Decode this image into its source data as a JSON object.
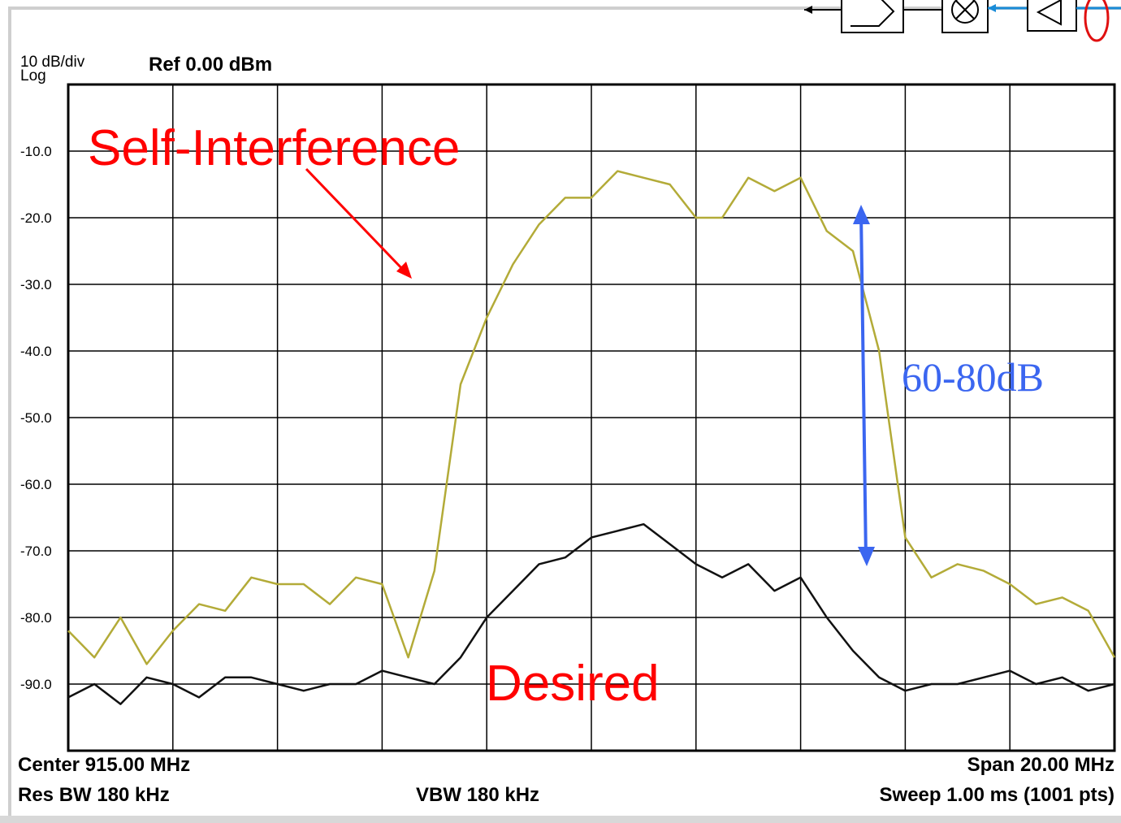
{
  "header": {
    "scale_line1": "10 dB/div",
    "scale_line2": "Log",
    "reference": "Ref 0.00 dBm"
  },
  "footer": {
    "center": "Center 915.00 MHz",
    "span": "Span 20.00 MHz",
    "rbw": "Res BW 180 kHz",
    "vbw": "VBW 180 kHz",
    "sweep": "Sweep  1.00 ms (1001 pts)"
  },
  "annotations": {
    "self_interference": "Self-Interference",
    "desired": "Desired",
    "gap": "60-80dB"
  },
  "colors": {
    "self_interference_trace": "#b3ab38",
    "desired_trace": "#111111",
    "label_red": "#ff0000",
    "gap_blue": "#3b66f0",
    "grid": "#000000"
  },
  "chart_data": {
    "type": "line",
    "x_unit": "MHz",
    "xlim": [
      905,
      925
    ],
    "ylim": [
      -100,
      0
    ],
    "y_ticks": [
      -10,
      -20,
      -30,
      -40,
      -50,
      -60,
      -70,
      -80,
      -90
    ],
    "y_tick_labels": [
      "-10.0",
      "-20.0",
      "-30.0",
      "-40.0",
      "-50.0",
      "-60.0",
      "-70.0",
      "-80.0",
      "-90.0"
    ],
    "x_divisions": 10,
    "grid": true,
    "series": [
      {
        "id": "self_interference",
        "color": "#b3ab38",
        "x": [
          905,
          905.5,
          906,
          906.5,
          907,
          907.5,
          908,
          908.5,
          909,
          909.5,
          910,
          910.5,
          911,
          911.5,
          912,
          912.5,
          913,
          913.5,
          914,
          914.5,
          915,
          915.5,
          916,
          916.5,
          917,
          917.5,
          918,
          918.5,
          919,
          919.5,
          920,
          920.5,
          921,
          921.5,
          922,
          922.5,
          923,
          923.5,
          924,
          924.5,
          925
        ],
        "y": [
          -82,
          -86,
          -80,
          -87,
          -82,
          -78,
          -79,
          -74,
          -75,
          -75,
          -78,
          -74,
          -75,
          -86,
          -73,
          -45,
          -35,
          -27,
          -21,
          -17,
          -17,
          -13,
          -14,
          -15,
          -20,
          -20,
          -14,
          -16,
          -14,
          -22,
          -25,
          -40,
          -68,
          -74,
          -72,
          -73,
          -75,
          -78,
          -77,
          -79,
          -86
        ]
      },
      {
        "id": "desired",
        "color": "#111111",
        "x": [
          905,
          905.5,
          906,
          906.5,
          907,
          907.5,
          908,
          908.5,
          909,
          909.5,
          910,
          910.5,
          911,
          911.5,
          912,
          912.5,
          913,
          913.5,
          914,
          914.5,
          915,
          915.5,
          916,
          916.5,
          917,
          917.5,
          918,
          918.5,
          919,
          919.5,
          920,
          920.5,
          921,
          921.5,
          922,
          922.5,
          923,
          923.5,
          924,
          924.5,
          925
        ],
        "y": [
          -92,
          -90,
          -93,
          -89,
          -90,
          -92,
          -89,
          -89,
          -90,
          -91,
          -90,
          -90,
          -88,
          -89,
          -90,
          -86,
          -80,
          -76,
          -72,
          -71,
          -68,
          -67,
          -66,
          -69,
          -72,
          -74,
          -72,
          -76,
          -74,
          -80,
          -85,
          -89,
          -91,
          -90,
          -90,
          -89,
          -88,
          -90,
          -89,
          -91,
          -90
        ]
      }
    ]
  }
}
